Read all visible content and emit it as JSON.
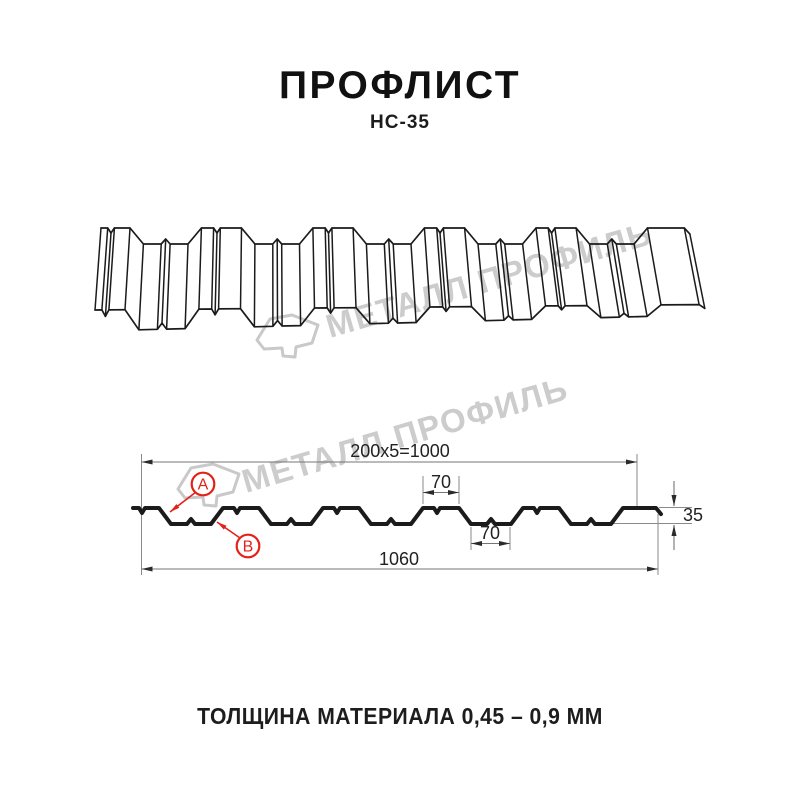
{
  "header": {
    "title": "ПРОФЛИСТ",
    "subtitle": "НС-35"
  },
  "watermark": {
    "text": "МЕТАЛЛ ПРОФИЛЬ",
    "logo": "metalprofil-pentagon-logo"
  },
  "dimensions": {
    "top_width": "200x5=1000",
    "crest_width": "70",
    "valley_width": "70",
    "height": "35",
    "total_width": "1060"
  },
  "annotations": {
    "a": "A",
    "b": "B"
  },
  "footer": {
    "thickness": "ТОЛЩИНА МАТЕРИАЛА 0,45 – 0,9 ММ"
  },
  "colors": {
    "line": "#1b1b1b",
    "accent_red": "#e32119",
    "dim_line": "#757575",
    "watermark": "#cccccc"
  }
}
